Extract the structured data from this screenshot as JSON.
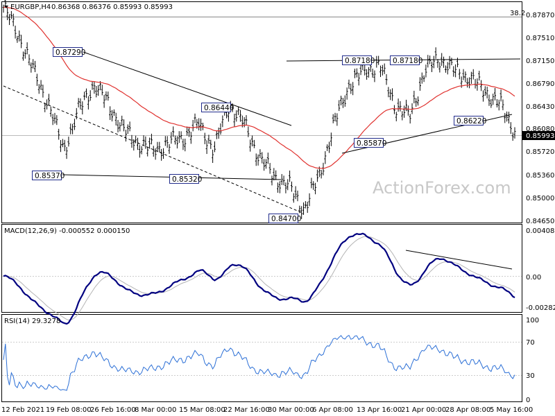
{
  "header": {
    "symbol": "EURGBP,H4",
    "ohlc": "0.86368 0.86376 0.85993 0.85993"
  },
  "watermark": "ActionForex.com",
  "colors": {
    "bars": "#000000",
    "ma": "#e0312e",
    "macd": "#000080",
    "signal": "#b4b4b4",
    "rsi": "#2b6fd6",
    "grid": "#c8c8c8",
    "box_border": "#1f2a8a",
    "current_bg": "#000000",
    "current_fg": "#ffffff"
  },
  "price_axis": {
    "labels": [
      "0.87870",
      "0.87510",
      "0.87150",
      "0.86790",
      "0.86430",
      "0.86080",
      "0.85720",
      "0.85360",
      "0.85000",
      "0.84650"
    ],
    "current": "0.85993",
    "fib_label": "38.2"
  },
  "macd_axis": {
    "labels": [
      "0.004088",
      "0.00",
      "-0.00282"
    ],
    "current": "0.00"
  },
  "rsi_axis": {
    "labels": [
      "100",
      "70",
      "30",
      "0"
    ]
  },
  "time_axis": {
    "labels": [
      "12 Feb 2021",
      "19 Feb 08:00",
      "26 Feb 16:00",
      "8 Mar 00:00",
      "15 Mar 08:00",
      "22 Mar 16:00",
      "30 Mar 00:00",
      "6 Apr 08:00",
      "13 Apr 16:00",
      "21 Apr 00:00",
      "28 Apr 08:00",
      "5 May 16:00"
    ]
  },
  "indicators": {
    "macd": "MACD(12,26,9) -0.000552 0.000150",
    "rsi": "RSI(14) 29.3278"
  },
  "price_labels": [
    "0.87290",
    "0.86440",
    "0.85370",
    "0.85320",
    "0.84700",
    "0.87180",
    "0.87180",
    "0.85870",
    "0.86220"
  ],
  "chart_data": {
    "type": "line",
    "title": "EURGBP,H4",
    "price_series": {
      "name": "EURGBP,H4",
      "x_dates": [
        "12 Feb",
        "15 Feb",
        "17 Feb",
        "19 Feb",
        "22 Feb",
        "24 Feb",
        "26 Feb",
        "2 Mar",
        "4 Mar",
        "8 Mar",
        "10 Mar",
        "12 Mar",
        "15 Mar",
        "17 Mar",
        "19 Mar",
        "22 Mar",
        "24 Mar",
        "26 Mar",
        "30 Mar",
        "1 Apr",
        "5 Apr",
        "6 Apr",
        "8 Apr",
        "12 Apr",
        "13 Apr",
        "15 Apr",
        "19 Apr",
        "21 Apr",
        "23 Apr",
        "26 Apr",
        "28 Apr",
        "30 Apr",
        "4 May",
        "5 May",
        "6 May"
      ],
      "values": [
        0.8787,
        0.8745,
        0.869,
        0.864,
        0.857,
        0.863,
        0.867,
        0.864,
        0.86,
        0.858,
        0.857,
        0.858,
        0.859,
        0.861,
        0.857,
        0.864,
        0.861,
        0.856,
        0.853,
        0.8515,
        0.848,
        0.853,
        0.861,
        0.867,
        0.869,
        0.87,
        0.864,
        0.862,
        0.869,
        0.871,
        0.869,
        0.868,
        0.866,
        0.864,
        0.85993
      ]
    },
    "levels": [
      0.8729,
      0.8644,
      0.8537,
      0.8532,
      0.847,
      0.8718,
      0.8718,
      0.8587,
      0.8622
    ],
    "current_price": 0.85993,
    "ylim": [
      0.846,
      0.8795
    ],
    "macd": {
      "name": "MACD(12,26,9)",
      "value": -0.000552,
      "signal": 0.00015,
      "ylim": [
        -0.00282,
        0.004088
      ]
    },
    "rsi": {
      "name": "RSI(14)",
      "value": 29.3278,
      "ylim": [
        0,
        100
      ],
      "levels": [
        70,
        30
      ]
    }
  }
}
